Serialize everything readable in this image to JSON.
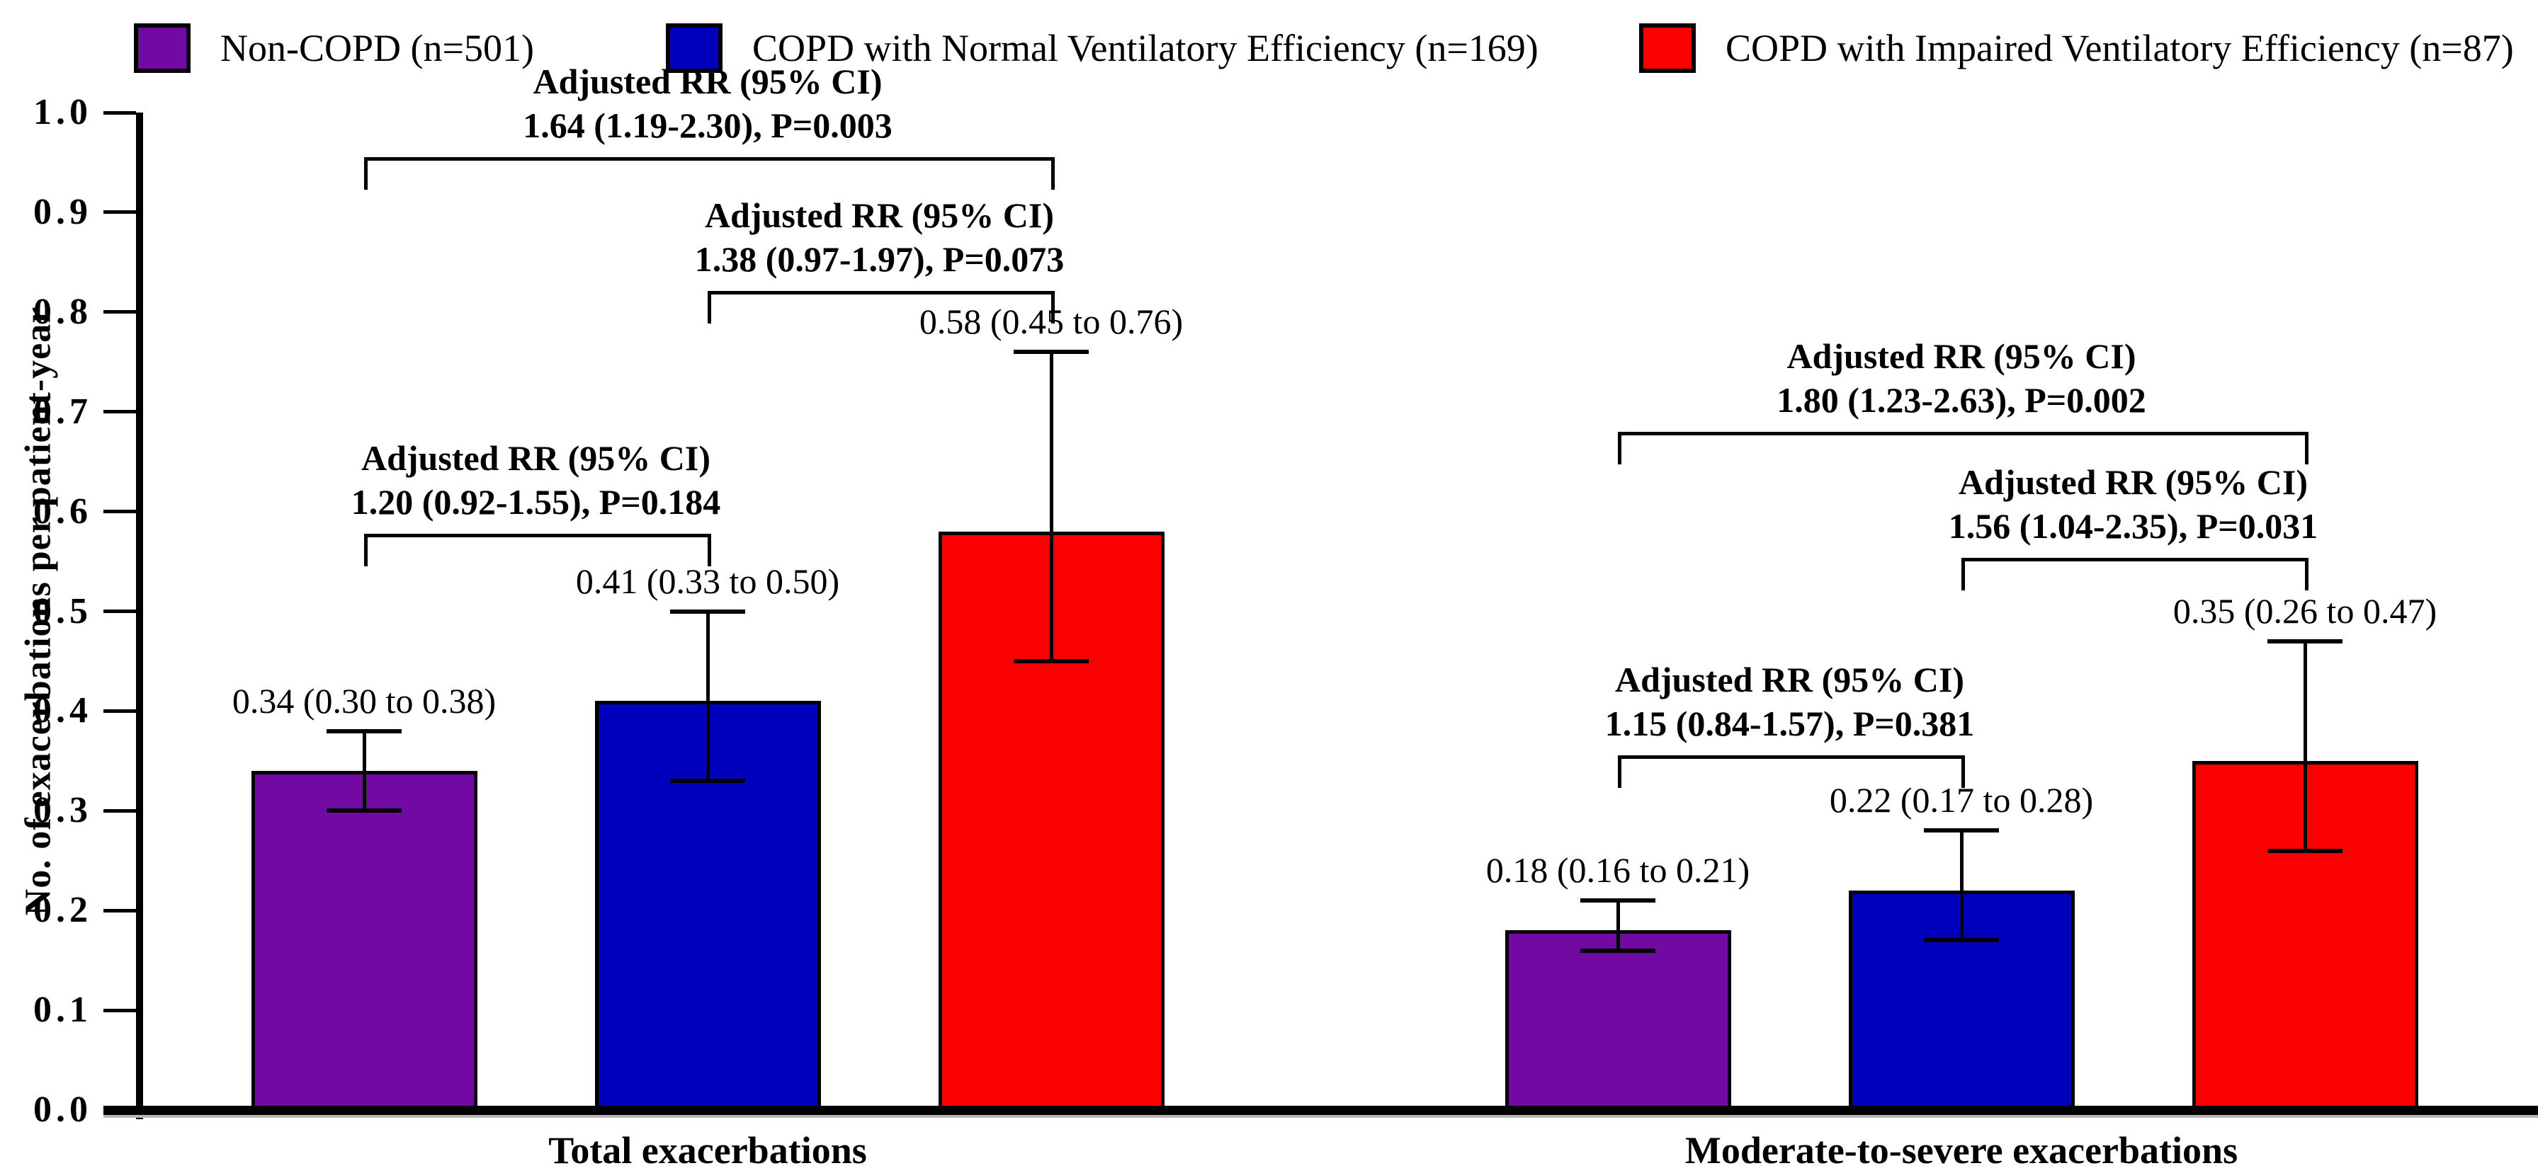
{
  "legend": {
    "items": [
      {
        "label": "Non-COPD (n=501)",
        "color": "#7209A2"
      },
      {
        "label": "COPD with Normal Ventilatory Efficiency (n=169)",
        "color": "#0000BD"
      },
      {
        "label": "COPD with Impaired Ventilatory Efficiency (n=87)",
        "color": "#FB0000"
      }
    ]
  },
  "chart_data": {
    "type": "bar",
    "title": "",
    "xlabel": "",
    "ylabel": "No. of exacerbations per patient-year",
    "ylim": [
      0.0,
      1.0
    ],
    "ytick_step": 0.1,
    "ytick_labels": [
      "0.0",
      "0.1",
      "0.2",
      "0.3",
      "0.4",
      "0.5",
      "0.6",
      "0.7",
      "0.8",
      "0.9",
      "1.0"
    ],
    "grid": false,
    "legend_position": "top",
    "error_bars": "95% CI",
    "categories": [
      "Total exacerbations",
      "Moderate-to-severe exacerbations"
    ],
    "series": [
      {
        "name": "Non-COPD (n=501)",
        "color": "#7209A2",
        "values": [
          0.34,
          0.18
        ],
        "ci_low": [
          0.3,
          0.16
        ],
        "ci_high": [
          0.38,
          0.21
        ],
        "labels": [
          "0.34 (0.30 to 0.38)",
          "0.18 (0.16 to 0.21)"
        ]
      },
      {
        "name": "COPD with Normal Ventilatory Efficiency (n=169)",
        "color": "#0000BD",
        "values": [
          0.41,
          0.22
        ],
        "ci_low": [
          0.33,
          0.17
        ],
        "ci_high": [
          0.5,
          0.28
        ],
        "labels": [
          "0.41 (0.33 to 0.50)",
          "0.22 (0.17 to 0.28)"
        ]
      },
      {
        "name": "COPD with Impaired Ventilatory Efficiency (n=87)",
        "color": "#FB0000",
        "values": [
          0.58,
          0.35
        ],
        "ci_low": [
          0.45,
          0.26
        ],
        "ci_high": [
          0.76,
          0.47
        ],
        "labels": [
          "0.58 (0.45 to 0.76)",
          "0.35 (0.26 to 0.47)"
        ]
      }
    ],
    "annotations": [
      {
        "group": 0,
        "between": [
          0,
          2
        ],
        "line1": "Adjusted RR (95% CI)",
        "line2": "1.64 (1.19-2.30), P=0.003"
      },
      {
        "group": 0,
        "between": [
          1,
          2
        ],
        "line1": "Adjusted RR (95% CI)",
        "line2": "1.38 (0.97-1.97), P=0.073"
      },
      {
        "group": 0,
        "between": [
          0,
          1
        ],
        "line1": "Adjusted RR (95% CI)",
        "line2": "1.20 (0.92-1.55), P=0.184"
      },
      {
        "group": 1,
        "between": [
          0,
          2
        ],
        "line1": "Adjusted RR (95% CI)",
        "line2": "1.80 (1.23-2.63), P=0.002"
      },
      {
        "group": 1,
        "between": [
          1,
          2
        ],
        "line1": "Adjusted RR (95% CI)",
        "line2": "1.56 (1.04-2.35), P=0.031"
      },
      {
        "group": 1,
        "between": [
          0,
          1
        ],
        "line1": "Adjusted RR (95% CI)",
        "line2": "1.15 (0.84-1.57), P=0.381"
      }
    ]
  }
}
